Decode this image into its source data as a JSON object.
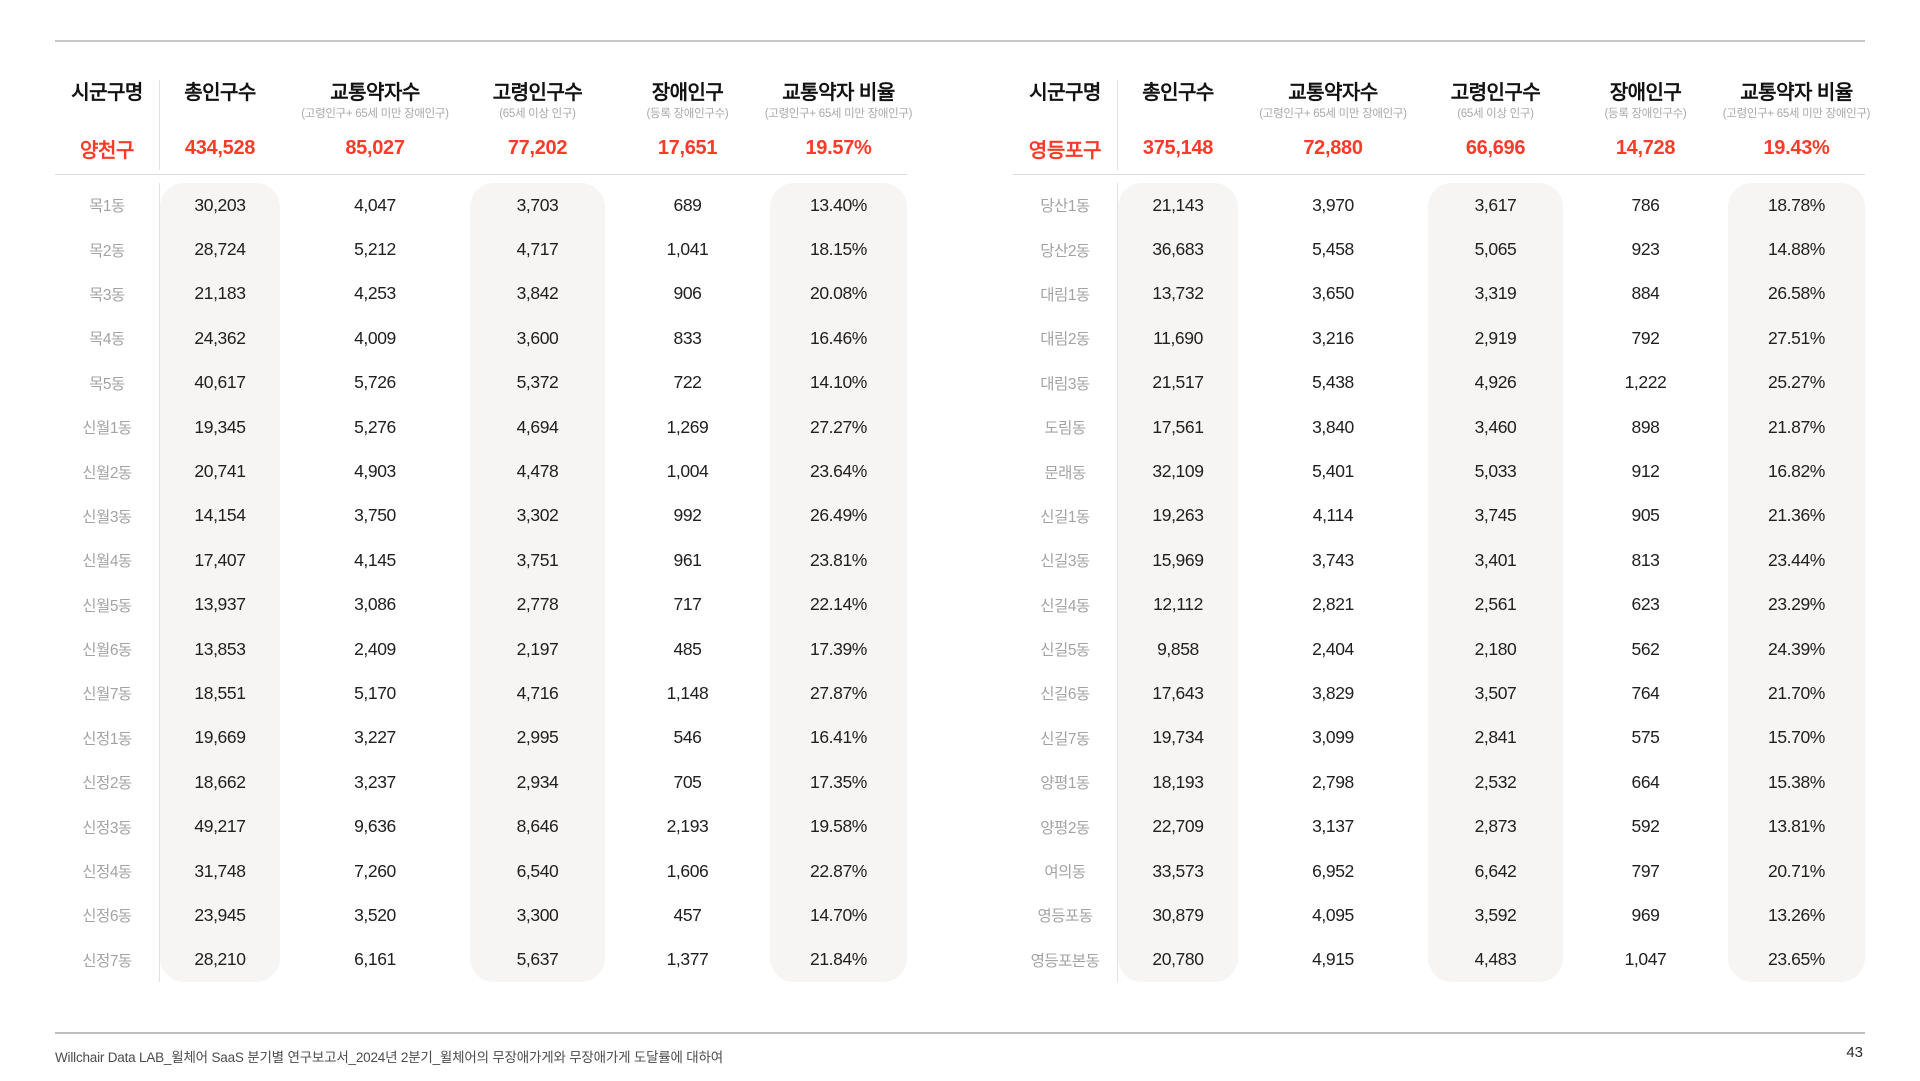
{
  "page": {
    "footer_text": "Willchair Data LAB_윌체어 SaaS 분기별 연구보고서_2024년 2분기_윌체어의 무장애가게와 무장애가게 도달률에 대하여",
    "page_number": "43",
    "accent_color": "#FA3B2A",
    "pill_color": "#F6F5F3"
  },
  "columns": {
    "district": {
      "label": "시군구명",
      "sub": ""
    },
    "total_population": {
      "label": "총인구수",
      "sub": ""
    },
    "transport_vulnerable": {
      "label": "교통약자수",
      "sub": "(고령인구+ 65세 미만 장애인구)"
    },
    "elderly": {
      "label": "고령인구수",
      "sub": "(65세 이상 인구)"
    },
    "disabled": {
      "label": "장애인구",
      "sub": "(등록 장애인구수)"
    },
    "ratio": {
      "label": "교통약자 비율",
      "sub": "(고령인구+ 65세 미만 장애인구)"
    }
  },
  "tables": [
    {
      "district": "양천구",
      "summary": [
        "434,528",
        "85,027",
        "77,202",
        "17,651",
        "19.57%"
      ],
      "rows": [
        [
          "목1동",
          "30,203",
          "4,047",
          "3,703",
          "689",
          "13.40%"
        ],
        [
          "목2동",
          "28,724",
          "5,212",
          "4,717",
          "1,041",
          "18.15%"
        ],
        [
          "목3동",
          "21,183",
          "4,253",
          "3,842",
          "906",
          "20.08%"
        ],
        [
          "목4동",
          "24,362",
          "4,009",
          "3,600",
          "833",
          "16.46%"
        ],
        [
          "목5동",
          "40,617",
          "5,726",
          "5,372",
          "722",
          "14.10%"
        ],
        [
          "신월1동",
          "19,345",
          "5,276",
          "4,694",
          "1,269",
          "27.27%"
        ],
        [
          "신월2동",
          "20,741",
          "4,903",
          "4,478",
          "1,004",
          "23.64%"
        ],
        [
          "신월3동",
          "14,154",
          "3,750",
          "3,302",
          "992",
          "26.49%"
        ],
        [
          "신월4동",
          "17,407",
          "4,145",
          "3,751",
          "961",
          "23.81%"
        ],
        [
          "신월5동",
          "13,937",
          "3,086",
          "2,778",
          "717",
          "22.14%"
        ],
        [
          "신월6동",
          "13,853",
          "2,409",
          "2,197",
          "485",
          "17.39%"
        ],
        [
          "신월7동",
          "18,551",
          "5,170",
          "4,716",
          "1,148",
          "27.87%"
        ],
        [
          "신정1동",
          "19,669",
          "3,227",
          "2,995",
          "546",
          "16.41%"
        ],
        [
          "신정2동",
          "18,662",
          "3,237",
          "2,934",
          "705",
          "17.35%"
        ],
        [
          "신정3동",
          "49,217",
          "9,636",
          "8,646",
          "2,193",
          "19.58%"
        ],
        [
          "신정4동",
          "31,748",
          "7,260",
          "6,540",
          "1,606",
          "22.87%"
        ],
        [
          "신정6동",
          "23,945",
          "3,520",
          "3,300",
          "457",
          "14.70%"
        ],
        [
          "신정7동",
          "28,210",
          "6,161",
          "5,637",
          "1,377",
          "21.84%"
        ]
      ]
    },
    {
      "district": "영등포구",
      "summary": [
        "375,148",
        "72,880",
        "66,696",
        "14,728",
        "19.43%"
      ],
      "rows": [
        [
          "당산1동",
          "21,143",
          "3,970",
          "3,617",
          "786",
          "18.78%"
        ],
        [
          "당산2동",
          "36,683",
          "5,458",
          "5,065",
          "923",
          "14.88%"
        ],
        [
          "대림1동",
          "13,732",
          "3,650",
          "3,319",
          "884",
          "26.58%"
        ],
        [
          "대림2동",
          "11,690",
          "3,216",
          "2,919",
          "792",
          "27.51%"
        ],
        [
          "대림3동",
          "21,517",
          "5,438",
          "4,926",
          "1,222",
          "25.27%"
        ],
        [
          "도림동",
          "17,561",
          "3,840",
          "3,460",
          "898",
          "21.87%"
        ],
        [
          "문래동",
          "32,109",
          "5,401",
          "5,033",
          "912",
          "16.82%"
        ],
        [
          "신길1동",
          "19,263",
          "4,114",
          "3,745",
          "905",
          "21.36%"
        ],
        [
          "신길3동",
          "15,969",
          "3,743",
          "3,401",
          "813",
          "23.44%"
        ],
        [
          "신길4동",
          "12,112",
          "2,821",
          "2,561",
          "623",
          "23.29%"
        ],
        [
          "신길5동",
          "9,858",
          "2,404",
          "2,180",
          "562",
          "24.39%"
        ],
        [
          "신길6동",
          "17,643",
          "3,829",
          "3,507",
          "764",
          "21.70%"
        ],
        [
          "신길7동",
          "19,734",
          "3,099",
          "2,841",
          "575",
          "15.70%"
        ],
        [
          "양평1동",
          "18,193",
          "2,798",
          "2,532",
          "664",
          "15.38%"
        ],
        [
          "양평2동",
          "22,709",
          "3,137",
          "2,873",
          "592",
          "13.81%"
        ],
        [
          "여의동",
          "33,573",
          "6,952",
          "6,642",
          "797",
          "20.71%"
        ],
        [
          "영등포동",
          "30,879",
          "4,095",
          "3,592",
          "969",
          "13.26%"
        ],
        [
          "영등포본동",
          "20,780",
          "4,915",
          "4,483",
          "1,047",
          "23.65%"
        ]
      ]
    }
  ]
}
